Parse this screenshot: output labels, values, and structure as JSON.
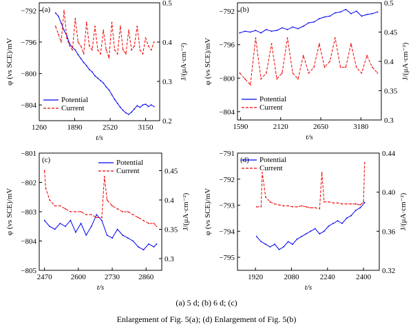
{
  "caption": {
    "line1": "(a) 5 d; (b) 6 d; (c)",
    "line2": "Enlargement of Fig. 5(a); (d) Enlargement of Fig. 5(b)"
  },
  "colors": {
    "potential": "#0000ee",
    "current": "#ee0000",
    "axis": "#000000"
  },
  "chart_data": [
    {
      "type": "line",
      "panel_label": "(a)",
      "xlabel": "t/s",
      "ylabel_left": "φ (vs SCE)/mV",
      "ylabel_right": "J/(μA·cm⁻²)",
      "xlim": [
        1260,
        3400
      ],
      "ylim_left": [
        -806,
        -791
      ],
      "ylim_right": [
        0.2,
        0.5
      ],
      "xticks": [
        1260,
        1890,
        2520,
        3150
      ],
      "yticks_left": [
        -792,
        -796,
        -800,
        -804
      ],
      "yticks_right": [
        0.2,
        0.3,
        0.4,
        0.5
      ],
      "legend": [
        "Potential",
        "Current"
      ],
      "legend_position": "bottom-left",
      "series": [
        {
          "name": "Potential",
          "axis": "left",
          "x": [
            1550,
            1600,
            1650,
            1700,
            1750,
            1800,
            1850,
            1900,
            1950,
            2000,
            2050,
            2100,
            2150,
            2200,
            2250,
            2300,
            2350,
            2400,
            2450,
            2500,
            2550,
            2600,
            2650,
            2700,
            2750,
            2800,
            2850,
            2900,
            2950,
            3000,
            3050,
            3100,
            3150,
            3200,
            3250,
            3300
          ],
          "y": [
            -792.3,
            -792.7,
            -793.6,
            -794.5,
            -795.2,
            -796.2,
            -796.7,
            -797.0,
            -797.6,
            -798.1,
            -798.6,
            -799.0,
            -799.5,
            -799.8,
            -800.3,
            -800.6,
            -800.9,
            -801.2,
            -801.7,
            -802.1,
            -802.7,
            -803.3,
            -803.8,
            -804.3,
            -804.7,
            -805.0,
            -805.2,
            -804.9,
            -804.5,
            -804.1,
            -804.3,
            -804.0,
            -803.9,
            -804.2,
            -804.0,
            -804.2
          ]
        },
        {
          "name": "Current",
          "axis": "right",
          "x": [
            1550,
            1600,
            1650,
            1700,
            1750,
            1800,
            1850,
            1900,
            1950,
            2000,
            2050,
            2100,
            2150,
            2200,
            2250,
            2300,
            2350,
            2400,
            2450,
            2500,
            2550,
            2600,
            2650,
            2700,
            2750,
            2800,
            2850,
            2900,
            2950,
            3000,
            3050,
            3100,
            3150,
            3200,
            3250,
            3300
          ],
          "y": [
            0.44,
            0.42,
            0.4,
            0.48,
            0.41,
            0.39,
            0.38,
            0.46,
            0.4,
            0.39,
            0.37,
            0.45,
            0.39,
            0.38,
            0.44,
            0.38,
            0.37,
            0.43,
            0.38,
            0.36,
            0.45,
            0.38,
            0.37,
            0.44,
            0.38,
            0.37,
            0.43,
            0.38,
            0.39,
            0.44,
            0.38,
            0.37,
            0.41,
            0.39,
            0.38,
            0.4
          ]
        }
      ]
    },
    {
      "type": "line",
      "panel_label": "(b)",
      "xlabel": "t/s",
      "ylabel_left": "φ (vs SCE)/mV",
      "ylabel_right": "J/(μA·cm⁻²)",
      "xlim": [
        1550,
        3450
      ],
      "ylim_left": [
        -805,
        -791
      ],
      "ylim_right": [
        0.3,
        0.5
      ],
      "xticks": [
        1590,
        2120,
        2650,
        3180
      ],
      "yticks_left": [
        -792,
        -796,
        -800,
        -804
      ],
      "yticks_right": [
        0.3,
        0.35,
        0.4,
        0.45,
        0.5
      ],
      "legend": [
        "Potential",
        "Current"
      ],
      "legend_position": "bottom-left",
      "series": [
        {
          "name": "Potential",
          "axis": "left",
          "x": [
            1580,
            1650,
            1720,
            1790,
            1860,
            1930,
            2000,
            2070,
            2140,
            2210,
            2280,
            2350,
            2420,
            2490,
            2560,
            2630,
            2700,
            2770,
            2840,
            2910,
            2980,
            3050,
            3120,
            3190,
            3260,
            3330,
            3400
          ],
          "y": [
            -794.6,
            -794.4,
            -794.5,
            -794.3,
            -794.6,
            -794.2,
            -794.4,
            -794.3,
            -794.0,
            -794.2,
            -793.9,
            -794.1,
            -793.8,
            -793.4,
            -793.3,
            -792.9,
            -792.7,
            -792.6,
            -792.2,
            -792.1,
            -791.8,
            -792.3,
            -792.0,
            -792.6,
            -792.4,
            -792.3,
            -792.1
          ]
        },
        {
          "name": "Current",
          "axis": "right",
          "x": [
            1580,
            1650,
            1720,
            1790,
            1860,
            1930,
            2000,
            2070,
            2140,
            2210,
            2280,
            2350,
            2420,
            2490,
            2560,
            2630,
            2700,
            2770,
            2840,
            2910,
            2980,
            3050,
            3120,
            3190,
            3260,
            3330,
            3400
          ],
          "y": [
            0.38,
            0.37,
            0.36,
            0.44,
            0.37,
            0.38,
            0.43,
            0.37,
            0.38,
            0.44,
            0.38,
            0.37,
            0.41,
            0.38,
            0.39,
            0.43,
            0.39,
            0.4,
            0.44,
            0.39,
            0.39,
            0.43,
            0.39,
            0.38,
            0.41,
            0.39,
            0.38
          ]
        }
      ]
    },
    {
      "type": "line",
      "panel_label": "(c)",
      "xlabel": "t/s",
      "ylabel_left": "φ (vs SCE)/mV",
      "ylabel_right": "J/(μA·cm⁻²)",
      "xlim": [
        2450,
        2920
      ],
      "ylim_left": [
        -805,
        -801
      ],
      "ylim_right": [
        0.28,
        0.48
      ],
      "xticks": [
        2470,
        2600,
        2730,
        2860
      ],
      "yticks_left": [
        -801,
        -802,
        -803,
        -804,
        -805
      ],
      "yticks_right": [
        0.3,
        0.35,
        0.4,
        0.45
      ],
      "legend": [
        "Potential",
        "Current"
      ],
      "legend_position": "top-right",
      "series": [
        {
          "name": "Potential",
          "axis": "left",
          "x": [
            2470,
            2490,
            2510,
            2530,
            2550,
            2570,
            2590,
            2610,
            2630,
            2650,
            2670,
            2690,
            2710,
            2730,
            2750,
            2770,
            2790,
            2810,
            2830,
            2850,
            2870,
            2890,
            2900
          ],
          "y": [
            -803.3,
            -803.5,
            -803.6,
            -803.4,
            -803.5,
            -803.3,
            -803.7,
            -803.4,
            -803.8,
            -803.5,
            -803.1,
            -803.3,
            -803.8,
            -803.9,
            -803.6,
            -803.8,
            -803.9,
            -804.0,
            -804.2,
            -804.3,
            -804.1,
            -804.2,
            -804.1
          ]
        },
        {
          "name": "Current",
          "axis": "right",
          "x": [
            2470,
            2475,
            2490,
            2510,
            2530,
            2550,
            2570,
            2590,
            2610,
            2630,
            2650,
            2670,
            2690,
            2700,
            2710,
            2730,
            2750,
            2770,
            2790,
            2810,
            2830,
            2850,
            2870,
            2890,
            2900
          ],
          "y": [
            0.45,
            0.42,
            0.4,
            0.39,
            0.39,
            0.385,
            0.38,
            0.38,
            0.38,
            0.375,
            0.375,
            0.37,
            0.37,
            0.44,
            0.4,
            0.39,
            0.385,
            0.38,
            0.38,
            0.375,
            0.37,
            0.365,
            0.36,
            0.36,
            0.355
          ]
        }
      ]
    },
    {
      "type": "line",
      "panel_label": "(d)",
      "xlabel": "t/s",
      "ylabel_left": "φ (vs SCE)/mV",
      "ylabel_right": "J/(μA·cm⁻²)",
      "xlim": [
        1840,
        2470
      ],
      "ylim_left": [
        -795.5,
        -791
      ],
      "ylim_right": [
        0.32,
        0.44
      ],
      "xticks": [
        1920,
        2080,
        2240,
        2400
      ],
      "yticks_left": [
        -791,
        -792,
        -793,
        -794,
        -795
      ],
      "yticks_right": [
        0.32,
        0.36,
        0.4,
        0.44
      ],
      "legend": [
        "Potential",
        "Current"
      ],
      "legend_position": "top-left",
      "series": [
        {
          "name": "Potential",
          "axis": "left",
          "x": [
            1925,
            1945,
            1965,
            1985,
            2005,
            2025,
            2045,
            2065,
            2085,
            2105,
            2125,
            2145,
            2165,
            2185,
            2205,
            2225,
            2245,
            2265,
            2285,
            2305,
            2325,
            2345,
            2365,
            2385,
            2405
          ],
          "y": [
            -794.2,
            -794.4,
            -794.5,
            -794.6,
            -794.5,
            -794.7,
            -794.6,
            -794.4,
            -794.5,
            -794.3,
            -794.2,
            -794.1,
            -794.0,
            -793.9,
            -794.1,
            -794.0,
            -793.8,
            -793.7,
            -793.6,
            -793.7,
            -793.5,
            -793.4,
            -793.2,
            -793.1,
            -792.9
          ]
        },
        {
          "name": "Current",
          "axis": "right",
          "x": [
            1925,
            1945,
            1950,
            1965,
            1985,
            2005,
            2025,
            2045,
            2065,
            2085,
            2105,
            2125,
            2145,
            2165,
            2185,
            2205,
            2215,
            2225,
            2245,
            2265,
            2285,
            2305,
            2325,
            2345,
            2365,
            2385,
            2400,
            2405
          ],
          "y": [
            0.385,
            0.385,
            0.42,
            0.395,
            0.39,
            0.388,
            0.387,
            0.386,
            0.386,
            0.385,
            0.385,
            0.386,
            0.385,
            0.384,
            0.384,
            0.383,
            0.42,
            0.39,
            0.39,
            0.389,
            0.389,
            0.388,
            0.388,
            0.388,
            0.388,
            0.387,
            0.39,
            0.43
          ]
        }
      ]
    }
  ]
}
